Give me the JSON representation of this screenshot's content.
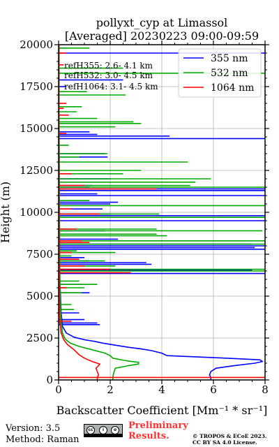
{
  "chart_data": {
    "type": "line",
    "title": "pollyxt_cyp at Limassol",
    "subtitle": "[Averaged] 20230223 09:00-09:59",
    "xlabel": "Backscatter Coefficient [Mm⁻¹ * sr⁻¹]",
    "ylabel": "Height (m)",
    "xlim": [
      0,
      8
    ],
    "ylim": [
      0,
      20000
    ],
    "xticks": [
      "0",
      "2",
      "4",
      "6",
      "8"
    ],
    "yticks": [
      "0",
      "2500",
      "5000",
      "7500",
      "10000",
      "12500",
      "15000",
      "17500",
      "20000"
    ],
    "grid": true,
    "legend_position": "top-right",
    "annotations": [
      "refH355:  2.6- 4.1 km",
      "refH532:  3.0- 4.5 km",
      "refH1064:  3.1- 4.5 km"
    ],
    "series": [
      {
        "name": "355 nm",
        "color": "#0000ff",
        "points": [
          [
            5.9,
            0
          ],
          [
            5.9,
            150
          ],
          [
            5.85,
            300
          ],
          [
            5.9,
            500
          ],
          [
            6.1,
            700
          ],
          [
            6.8,
            850
          ],
          [
            7.6,
            1000
          ],
          [
            7.9,
            1100
          ],
          [
            7.8,
            1200
          ],
          [
            6.5,
            1300
          ],
          [
            4.2,
            1450
          ],
          [
            4.0,
            1600
          ],
          [
            3.6,
            1750
          ],
          [
            3.2,
            1850
          ],
          [
            2.7,
            1950
          ],
          [
            2.3,
            2050
          ],
          [
            1.9,
            2150
          ],
          [
            1.7,
            2200
          ],
          [
            1.4,
            2300
          ],
          [
            1.0,
            2400
          ],
          [
            0.6,
            2550
          ],
          [
            0.3,
            2800
          ],
          [
            0.15,
            3200
          ],
          [
            0.1,
            4000
          ],
          [
            0.05,
            6000
          ],
          [
            0.03,
            10000
          ],
          [
            0.02,
            14000
          ],
          [
            0.02,
            20000
          ]
        ],
        "spikes": [
          [
            1.6,
            3300
          ],
          [
            1.5,
            3400
          ],
          [
            1.0,
            3600
          ],
          [
            0.8,
            4000
          ],
          [
            1.2,
            5200
          ],
          [
            0.9,
            5700
          ],
          [
            8.0,
            6350
          ],
          [
            7.5,
            6550
          ],
          [
            3.6,
            6900
          ],
          [
            3.4,
            7000
          ],
          [
            1.2,
            7100
          ],
          [
            1.0,
            7300
          ],
          [
            8.0,
            7800
          ],
          [
            7.6,
            7900
          ],
          [
            8.0,
            8000
          ],
          [
            7.5,
            8100
          ],
          [
            2.3,
            8400
          ],
          [
            1.8,
            8900
          ],
          [
            8.0,
            9500
          ],
          [
            8.0,
            9800
          ],
          [
            2.0,
            9900
          ],
          [
            1.7,
            10200
          ],
          [
            2.0,
            10500
          ],
          [
            2.3,
            10600
          ],
          [
            8.0,
            11000
          ],
          [
            1.5,
            11100
          ],
          [
            8.0,
            11300
          ],
          [
            8.0,
            11400
          ],
          [
            1.2,
            11500
          ],
          [
            1.3,
            11600
          ],
          [
            2.0,
            12000
          ],
          [
            1.9,
            13300
          ],
          [
            1.8,
            13500
          ],
          [
            8.0,
            14400
          ],
          [
            4.3,
            14550
          ],
          [
            1.5,
            14650
          ],
          [
            1.2,
            14800
          ],
          [
            0.3,
            17500
          ],
          [
            2.5,
            17900
          ],
          [
            8.0,
            19500
          ],
          [
            0.4,
            19800
          ]
        ]
      },
      {
        "name": "532 nm",
        "color": "#00aa00",
        "points": [
          [
            2.1,
            0
          ],
          [
            2.1,
            150
          ],
          [
            2.12,
            300
          ],
          [
            2.15,
            500
          ],
          [
            2.2,
            700
          ],
          [
            2.7,
            850
          ],
          [
            3.1,
            950
          ],
          [
            3.1,
            1050
          ],
          [
            2.6,
            1150
          ],
          [
            2.1,
            1300
          ],
          [
            2.0,
            1450
          ],
          [
            1.8,
            1600
          ],
          [
            1.3,
            1800
          ],
          [
            0.8,
            2000
          ],
          [
            0.45,
            2200
          ],
          [
            0.25,
            2450
          ],
          [
            0.15,
            2800
          ],
          [
            0.1,
            3500
          ],
          [
            0.06,
            5000
          ],
          [
            0.04,
            8000
          ],
          [
            0.03,
            12000
          ],
          [
            0.02,
            16000
          ],
          [
            0.02,
            20000
          ]
        ],
        "spikes": [
          [
            0.6,
            4200
          ],
          [
            0.5,
            4500
          ],
          [
            0.9,
            5200
          ],
          [
            1.0,
            5500
          ],
          [
            1.5,
            5700
          ],
          [
            0.8,
            5900
          ],
          [
            8.0,
            6500
          ],
          [
            8.0,
            6600
          ],
          [
            2.2,
            6800
          ],
          [
            1.8,
            7100
          ],
          [
            0.5,
            7400
          ],
          [
            2.2,
            7600
          ],
          [
            0.7,
            7700
          ],
          [
            8.0,
            8100
          ],
          [
            8.0,
            8300
          ],
          [
            4.2,
            8600
          ],
          [
            3.8,
            8700
          ],
          [
            7.9,
            8900
          ],
          [
            3.8,
            9000
          ],
          [
            8.0,
            9700
          ],
          [
            3.9,
            9900
          ],
          [
            8.0,
            10400
          ],
          [
            1.2,
            10700
          ],
          [
            8.0,
            11500
          ],
          [
            5.1,
            11600
          ],
          [
            5.3,
            11800
          ],
          [
            5.9,
            12000
          ],
          [
            2.5,
            12300
          ],
          [
            3.2,
            12500
          ],
          [
            5.0,
            13000
          ],
          [
            0.8,
            13300
          ],
          [
            1.9,
            13500
          ],
          [
            0.4,
            14000
          ],
          [
            2.2,
            15100
          ],
          [
            3.2,
            15300
          ],
          [
            2.9,
            15400
          ],
          [
            1.5,
            15600
          ],
          [
            0.7,
            16000
          ],
          [
            0.9,
            16300
          ],
          [
            2.6,
            17000
          ],
          [
            1.1,
            17200
          ],
          [
            8.0,
            18300
          ],
          [
            2.5,
            18600
          ],
          [
            1.2,
            19800
          ]
        ]
      },
      {
        "name": "1064 nm",
        "color": "#ff0000",
        "points": [
          [
            1.5,
            0
          ],
          [
            1.5,
            150
          ],
          [
            1.55,
            300
          ],
          [
            1.5,
            500
          ],
          [
            1.45,
            700
          ],
          [
            1.55,
            850
          ],
          [
            1.6,
            950
          ],
          [
            1.3,
            1100
          ],
          [
            1.0,
            1300
          ],
          [
            0.8,
            1500
          ],
          [
            0.6,
            1800
          ],
          [
            0.35,
            2100
          ],
          [
            0.2,
            2400
          ],
          [
            0.1,
            2800
          ],
          [
            0.05,
            3500
          ],
          [
            0.03,
            5000
          ],
          [
            0.02,
            8000
          ],
          [
            0.01,
            12000
          ],
          [
            0.01,
            16000
          ],
          [
            0.01,
            20000
          ]
        ],
        "spikes": [
          [
            8.0,
            150
          ],
          [
            0.5,
            3500
          ],
          [
            0.3,
            5500
          ],
          [
            2.8,
            6400
          ],
          [
            2.0,
            6600
          ],
          [
            1.0,
            6800
          ],
          [
            0.8,
            7200
          ],
          [
            0.5,
            7600
          ],
          [
            1.2,
            8200
          ],
          [
            0.9,
            8300
          ],
          [
            0.7,
            9000
          ],
          [
            1.6,
            9900
          ],
          [
            0.5,
            10200
          ],
          [
            3.8,
            11400
          ],
          [
            1.0,
            11600
          ],
          [
            0.5,
            12300
          ],
          [
            0.3,
            14700
          ],
          [
            0.4,
            15800
          ],
          [
            0.2,
            16200
          ],
          [
            0.3,
            16500
          ],
          [
            0.2,
            18800
          ],
          [
            0.3,
            19500
          ]
        ]
      }
    ]
  },
  "footer": {
    "version": "Version: 3.5",
    "method": "Method: Raman",
    "preliminary_line1": "Preliminary",
    "preliminary_line2": "Results.",
    "copyright_line1": "© TROPOS & ECoE 2023.",
    "copyright_line2": "CC BY SA 4.0 License."
  },
  "license_badge_icons": [
    "cc-icon",
    "by-icon",
    "sa-icon"
  ]
}
